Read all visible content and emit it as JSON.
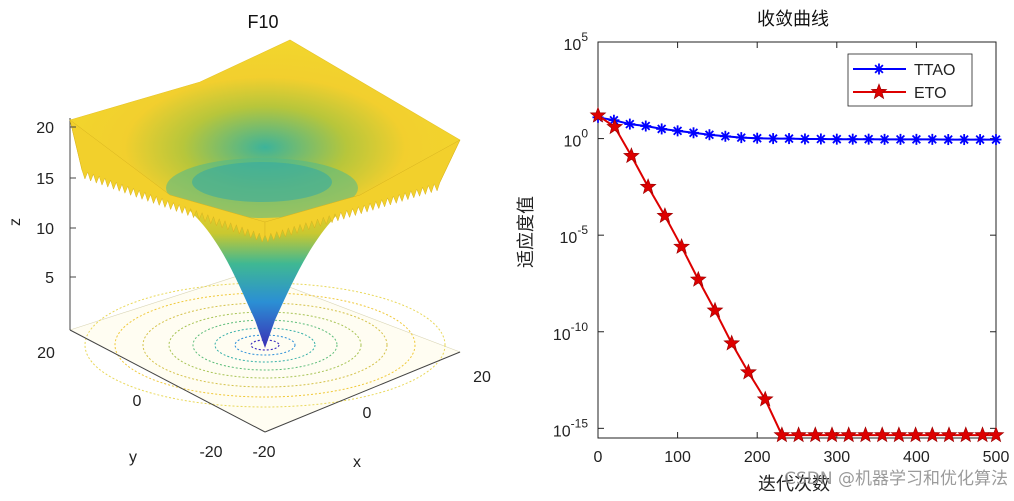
{
  "left_plot": {
    "title": "F10",
    "xlabel": "x",
    "ylabel": "y",
    "zlabel": "z",
    "x_ticks": [
      "-20",
      "0",
      "20"
    ],
    "y_ticks": [
      "20",
      "0",
      "-20"
    ],
    "z_ticks": [
      "20",
      "15",
      "10",
      "5"
    ],
    "colormap": [
      "#3e26a8",
      "#2f7cf6",
      "#1bb7ab",
      "#6cc44d",
      "#f5d12b",
      "#f9e52b"
    ]
  },
  "chart_data": {
    "type": "line",
    "title": "收敛曲线",
    "xlabel": "迭代次数",
    "ylabel": "适应度值",
    "yscale": "log",
    "xlim": [
      0,
      500
    ],
    "ylim_exp": [
      -15.5,
      5
    ],
    "x_ticks": [
      "0",
      "100",
      "200",
      "300",
      "400",
      "500"
    ],
    "y_ticks": [
      {
        "base": "10",
        "exp": "5",
        "value_exp": 5
      },
      {
        "base": "10",
        "exp": "0",
        "value_exp": 0
      },
      {
        "base": "10",
        "exp": "-5",
        "value_exp": -5
      },
      {
        "base": "10",
        "exp": "-10",
        "value_exp": -10
      },
      {
        "base": "10",
        "exp": "-15",
        "value_exp": -15
      }
    ],
    "legend_position": "top-right",
    "series": [
      {
        "name": "TTAO",
        "color": "#0000ff",
        "marker": "asterisk",
        "x": [
          0,
          20,
          40,
          60,
          80,
          100,
          120,
          140,
          160,
          180,
          200,
          220,
          240,
          260,
          280,
          300,
          320,
          340,
          360,
          380,
          400,
          420,
          440,
          460,
          480,
          500
        ],
        "log10_y": [
          1.1,
          0.95,
          0.75,
          0.65,
          0.5,
          0.4,
          0.3,
          0.2,
          0.12,
          0.05,
          0.02,
          0.0,
          0.0,
          -0.02,
          -0.02,
          -0.03,
          -0.03,
          -0.03,
          -0.04,
          -0.04,
          -0.04,
          -0.04,
          -0.05,
          -0.05,
          -0.05,
          -0.05
        ]
      },
      {
        "name": "ETO",
        "color": "#dd0000",
        "marker": "pentagram",
        "x": [
          0,
          21,
          42,
          63,
          84,
          105,
          126,
          147,
          168,
          189,
          210,
          231,
          252,
          273,
          294,
          315,
          336,
          357,
          378,
          399,
          420,
          441,
          462,
          483,
          500
        ],
        "log10_y": [
          1.2,
          0.6,
          -0.9,
          -2.5,
          -4.0,
          -5.6,
          -7.3,
          -8.9,
          -10.6,
          -12.1,
          -13.5,
          -15.35,
          -15.35,
          -15.35,
          -15.35,
          -15.35,
          -15.35,
          -15.35,
          -15.35,
          -15.35,
          -15.35,
          -15.35,
          -15.35,
          -15.35,
          -15.35
        ]
      }
    ]
  },
  "watermark": "CSDN @机器学习和优化算法"
}
